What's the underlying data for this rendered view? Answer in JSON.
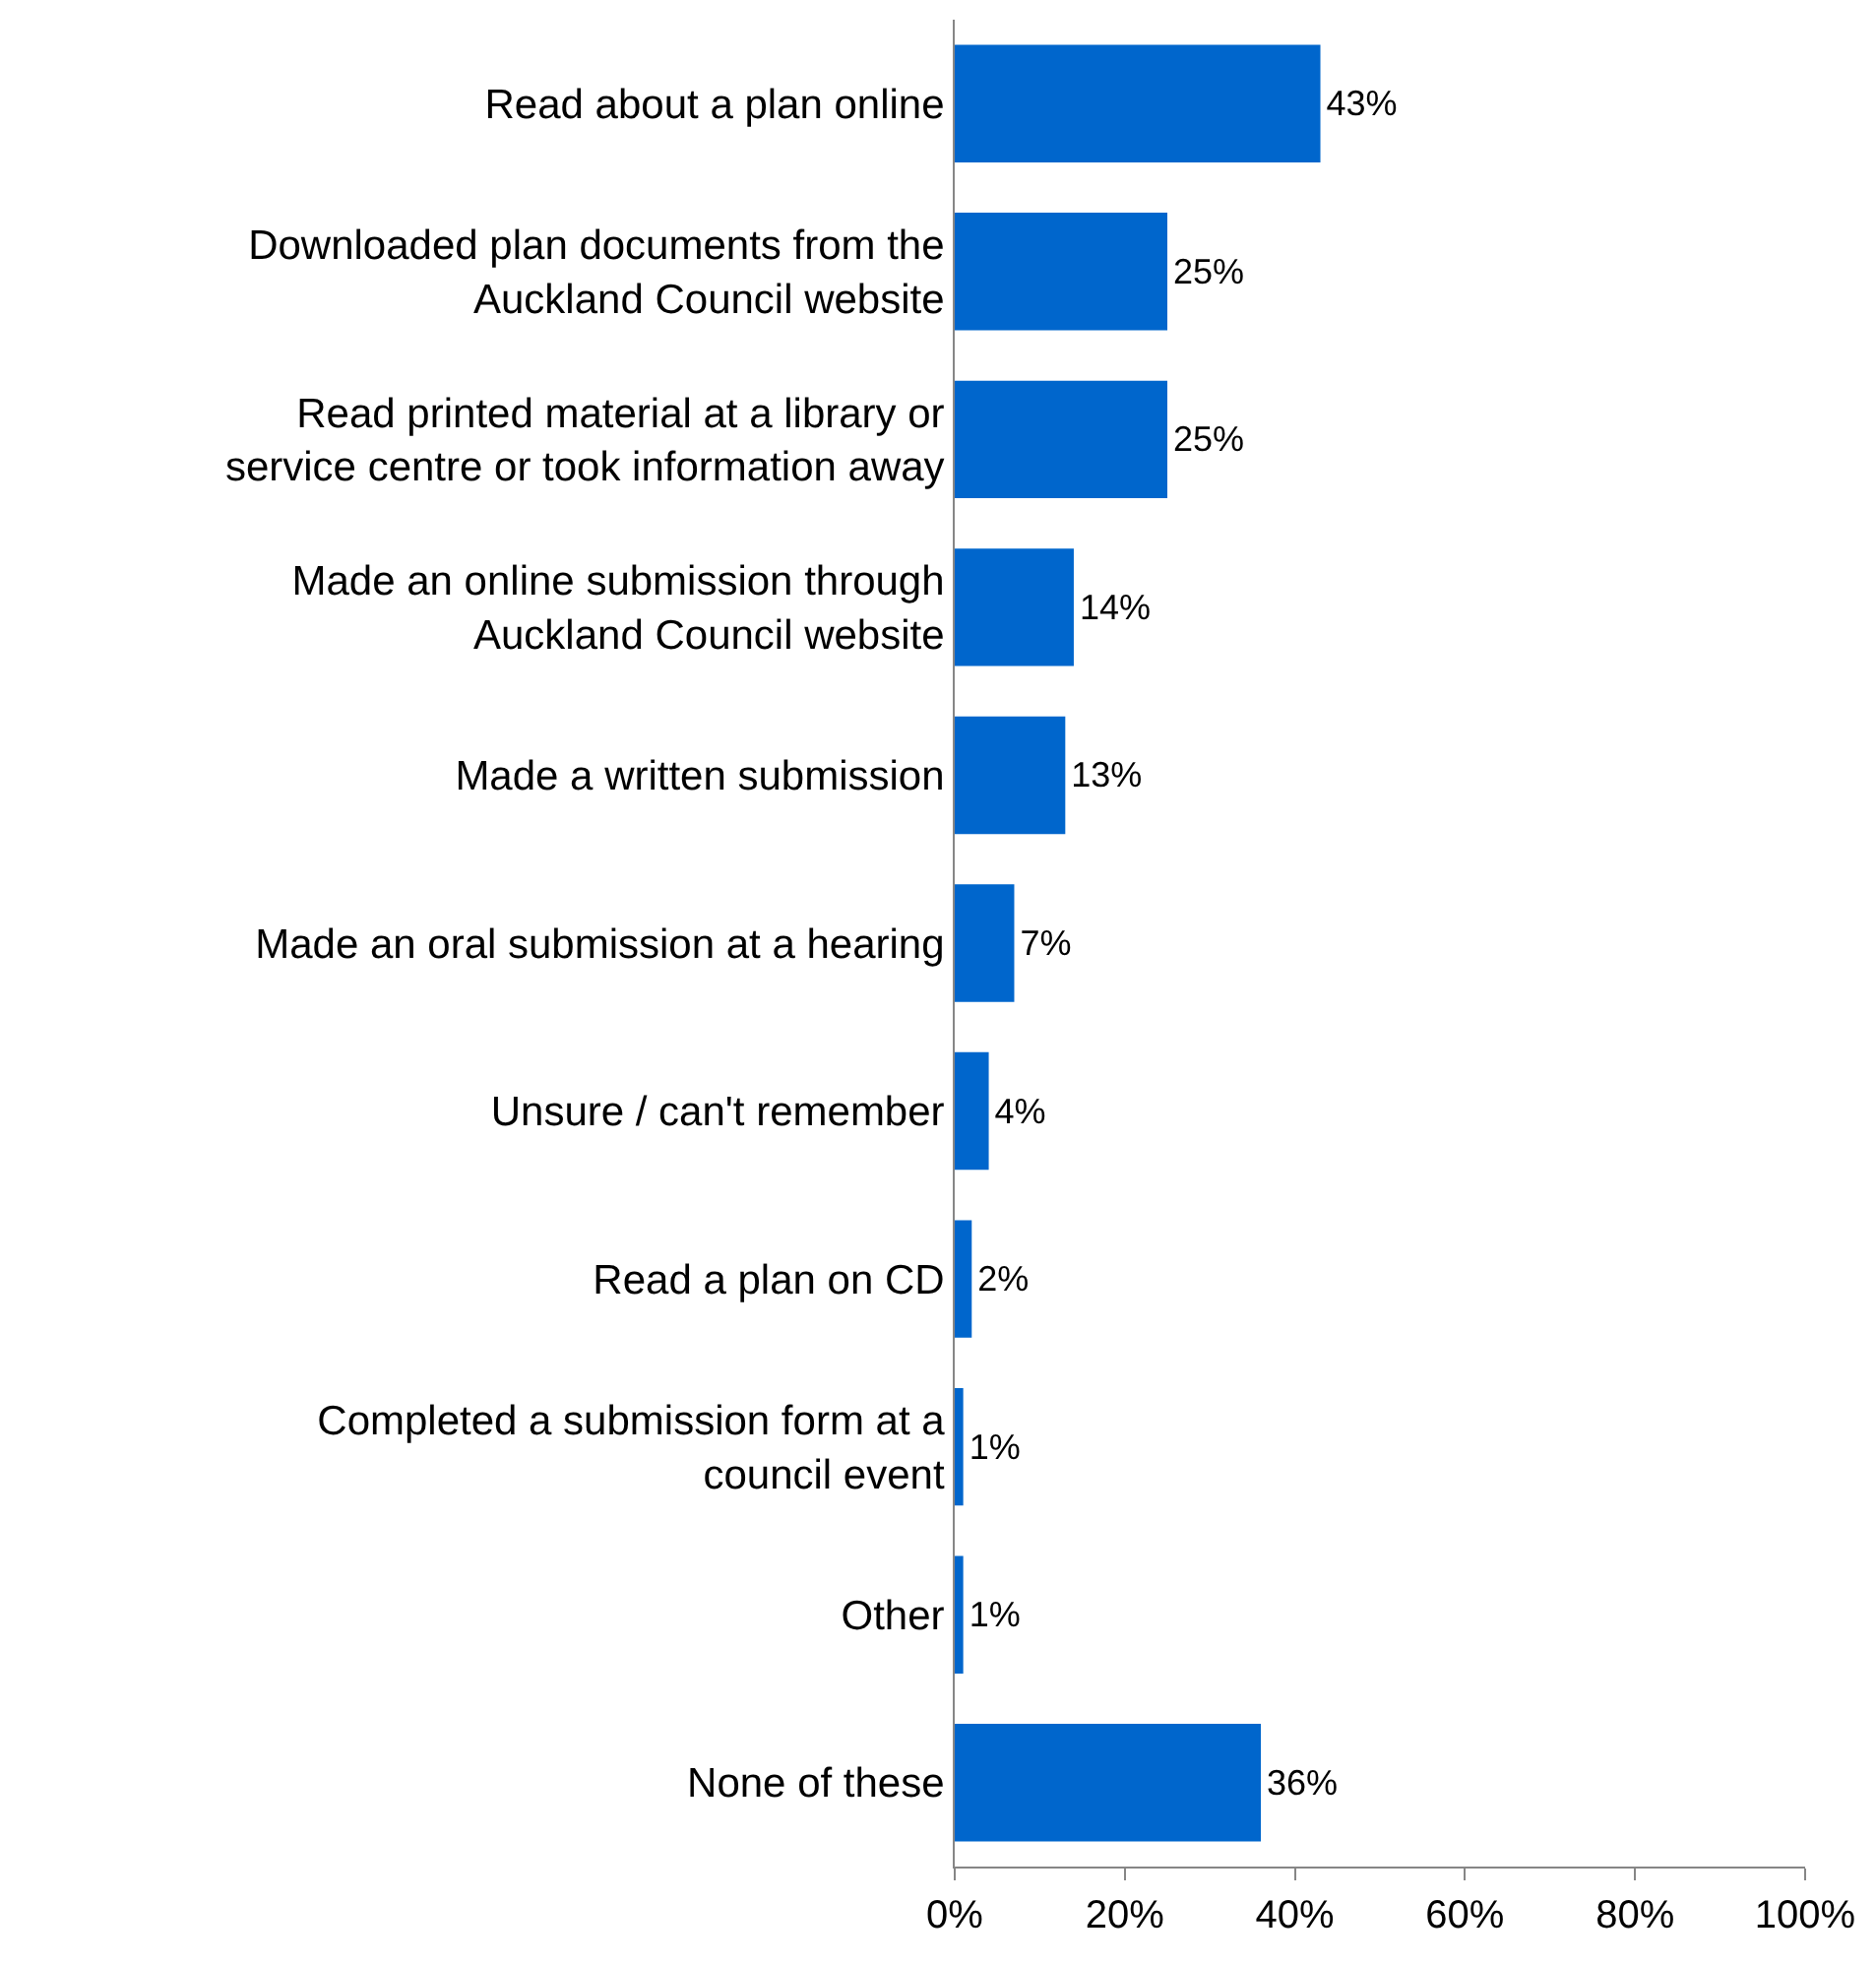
{
  "chart_data": {
    "type": "bar",
    "orientation": "horizontal",
    "categories": [
      "Read about a plan online",
      "Downloaded plan documents from the Auckland Council website",
      "Read printed material at a library or service centre or took information away",
      "Made an online submission through Auckland Council website",
      "Made a written submission",
      "Made an oral submission at a hearing",
      "Unsure / can't remember",
      "Read a plan on CD",
      "Completed a submission form at a council event",
      "Other",
      "None of these"
    ],
    "values": [
      43,
      25,
      25,
      14,
      13,
      7,
      4,
      2,
      1,
      1,
      36
    ],
    "value_labels": [
      "43%",
      "25%",
      "25%",
      "14%",
      "13%",
      "7%",
      "4%",
      "2%",
      "1%",
      "1%",
      "36%"
    ],
    "color": "#0066cc",
    "xlim": [
      0,
      100
    ],
    "xticks": [
      {
        "value": 0,
        "label": "0%"
      },
      {
        "value": 20,
        "label": "20%"
      },
      {
        "value": 40,
        "label": "40%"
      },
      {
        "value": 60,
        "label": "60%"
      },
      {
        "value": 80,
        "label": "80%"
      },
      {
        "value": 100,
        "label": "100%"
      }
    ],
    "tick_labels": "xy"
  }
}
